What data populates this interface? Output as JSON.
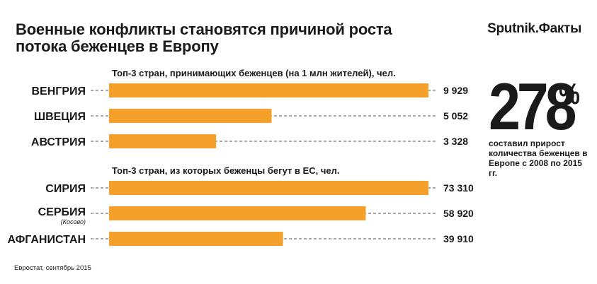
{
  "header": {
    "title": "Военные конфликты становятся причиной роста потока беженцев в Европу",
    "brand": "Sputnik.Факты"
  },
  "highlight": {
    "number": "278",
    "percent_sign": "%",
    "description": "составил прирост количества беженцев в Европе с 2008 по 2015 гг."
  },
  "source": "Евростат, сентябрь 2015",
  "colors": {
    "bar": "#F5A02A",
    "leader": "#555555",
    "text": "#1a1a1a"
  },
  "chart_data": [
    {
      "type": "bar",
      "orientation": "horizontal",
      "title": "Топ-3 стран, принимающих беженцев (на 1 млн жителей), чел.",
      "categories": [
        "ВЕНГРИЯ",
        "ШВЕЦИЯ",
        "АВСТРИЯ"
      ],
      "category_notes": [
        "",
        "",
        ""
      ],
      "values": [
        9929,
        5052,
        3328
      ],
      "value_labels": [
        "9 929",
        "5 052",
        "3 328"
      ],
      "xlim": [
        0,
        9929
      ],
      "grid": false
    },
    {
      "type": "bar",
      "orientation": "horizontal",
      "title": "Топ-3 стран, из которых беженцы бегут в ЕС, чел.",
      "categories": [
        "СИРИЯ",
        "СЕРБИЯ",
        "АФГАНИСТАН"
      ],
      "category_notes": [
        "",
        "(Косово)",
        ""
      ],
      "values": [
        73310,
        58920,
        39910
      ],
      "value_labels": [
        "73 310",
        "58 920",
        "39 910"
      ],
      "xlim": [
        0,
        73310
      ],
      "grid": false
    }
  ]
}
